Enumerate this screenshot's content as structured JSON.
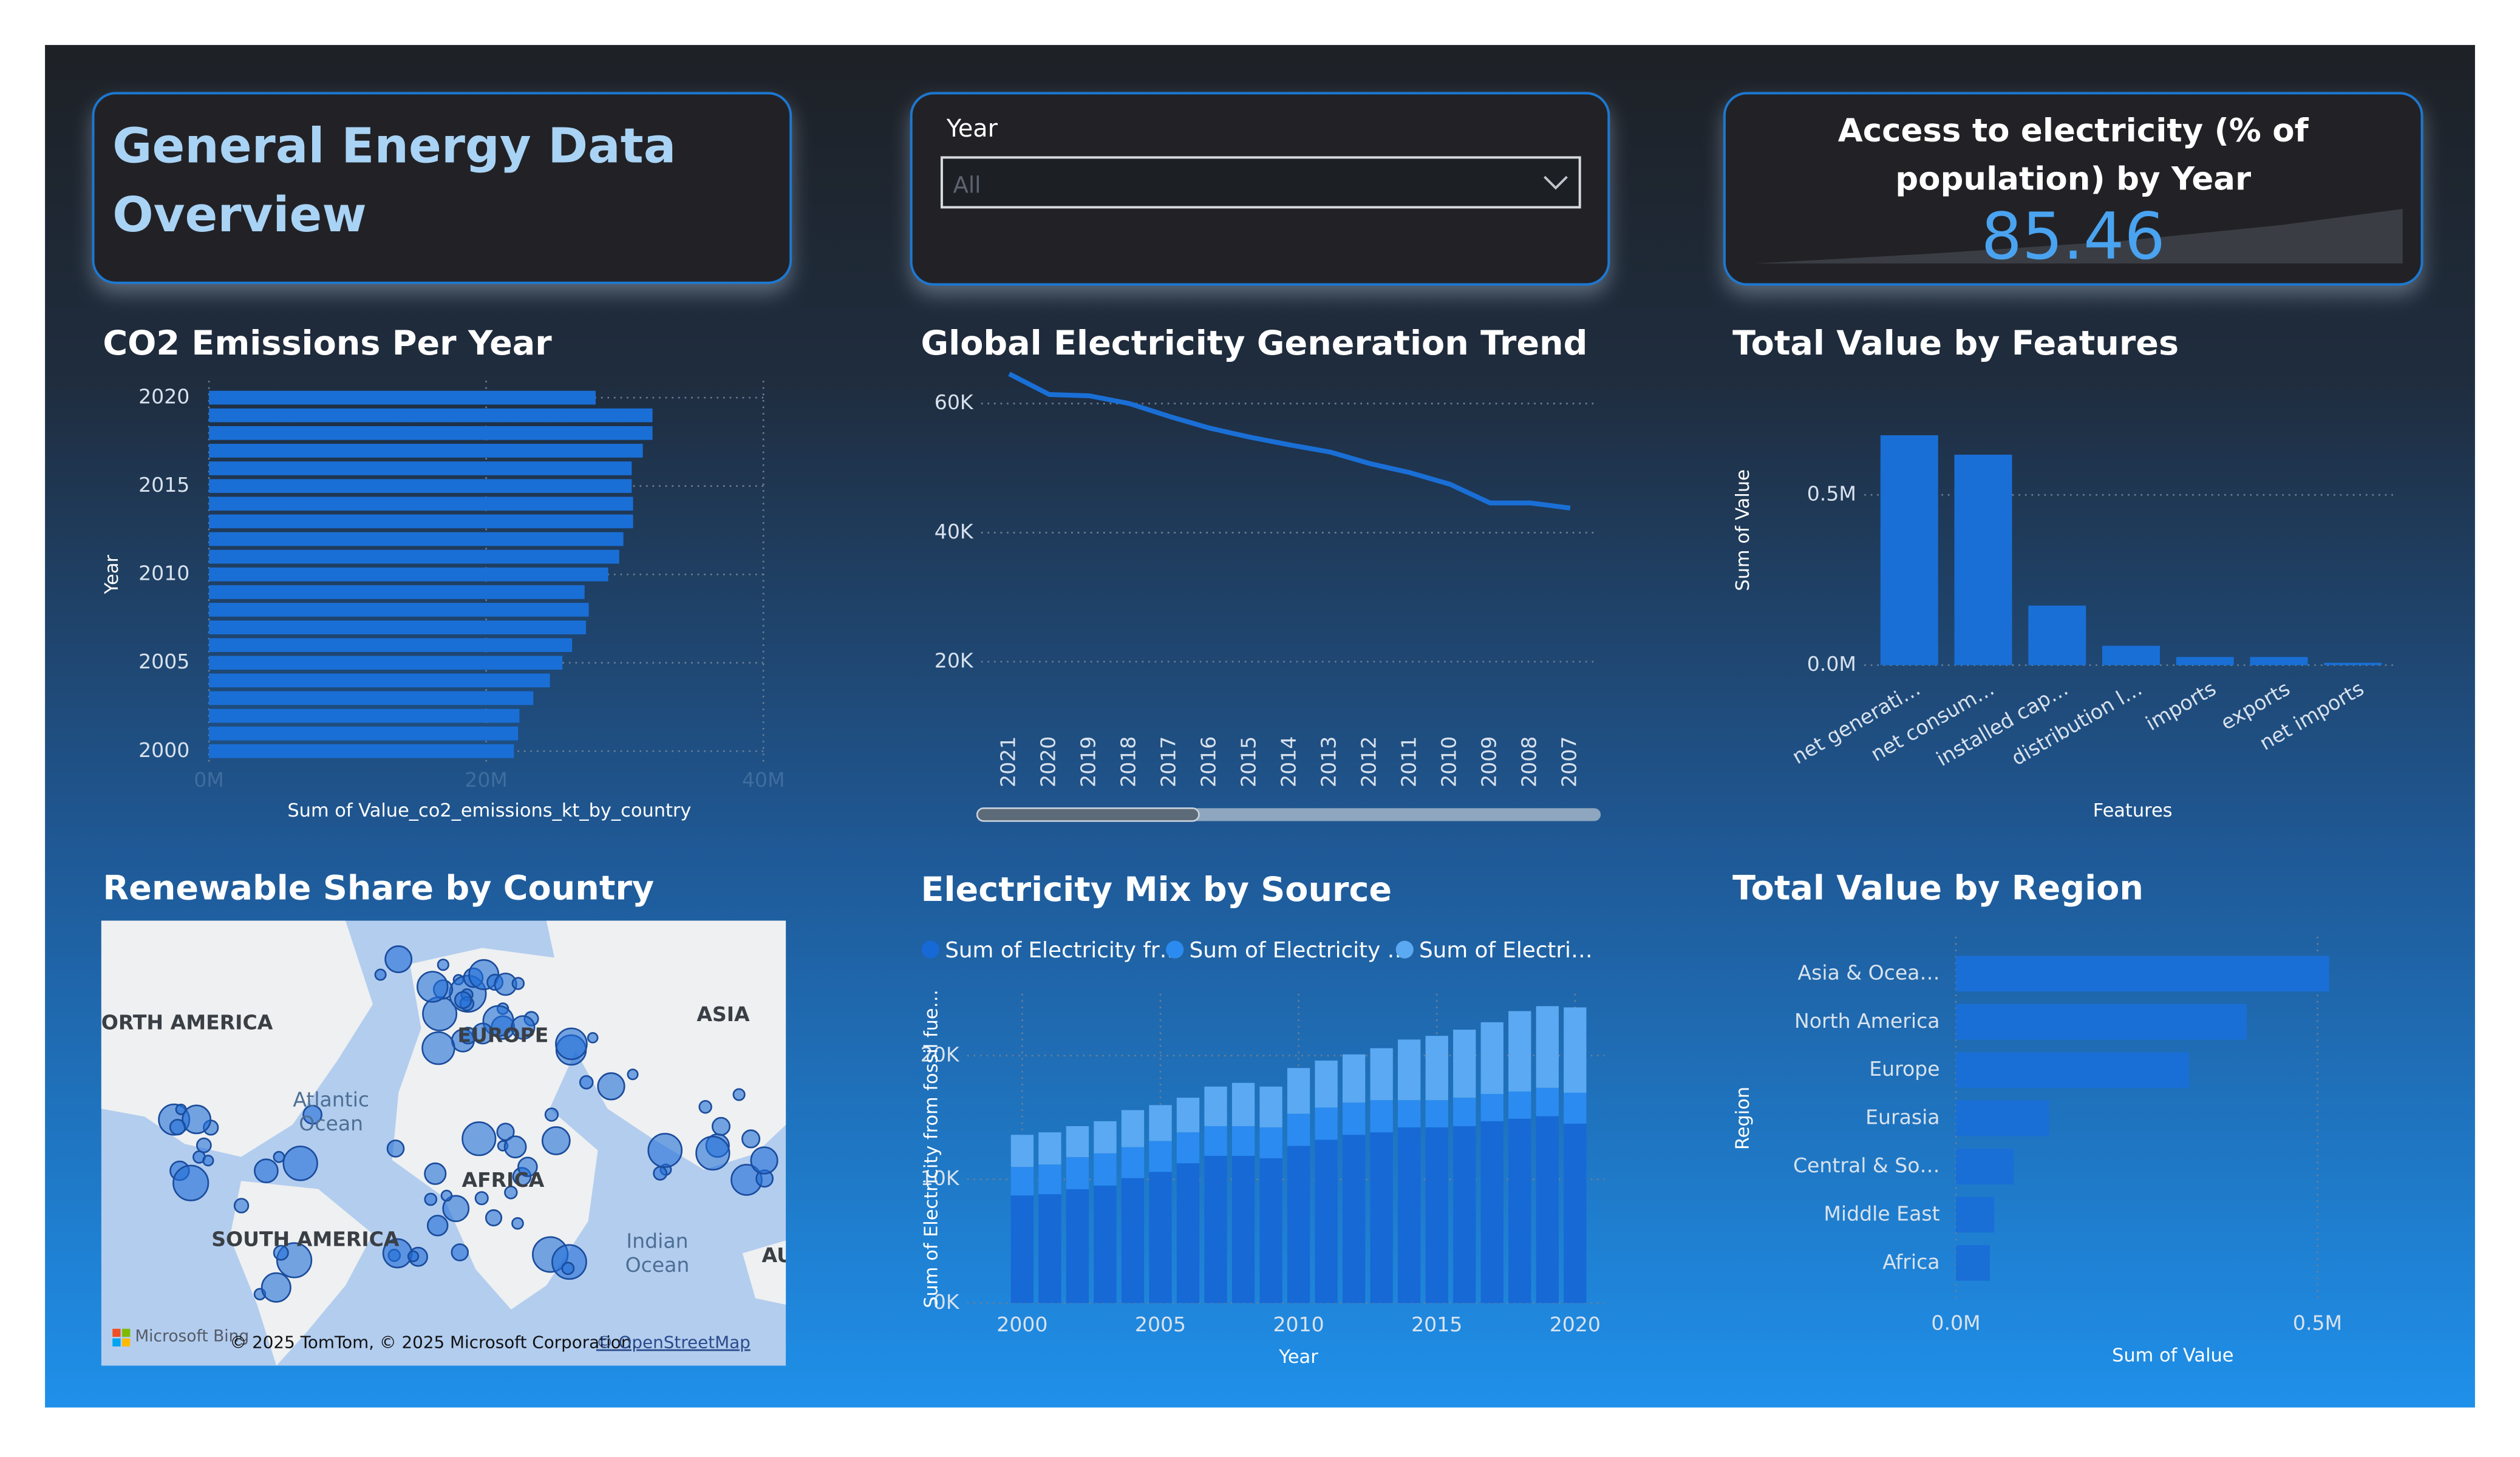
{
  "dashboard": {
    "title": "General Energy Data Overview",
    "slicer": {
      "label": "Year",
      "value": "All"
    },
    "card": {
      "title": "Access to electricity (% of population) by Year",
      "value": 85.46
    }
  },
  "map": {
    "title": "Renewable Share by Country",
    "labels": [
      {
        "lines": [
          "ORTH AMERICA"
        ]
      },
      {
        "lines": [
          "EUROPE"
        ]
      },
      {
        "lines": [
          "ASIA"
        ]
      },
      {
        "lines": [
          "Atlantic",
          "Ocean"
        ]
      },
      {
        "lines": [
          "AFRICA"
        ]
      },
      {
        "lines": [
          "SOUTH AMERICA"
        ]
      },
      {
        "lines": [
          "Indian",
          "Ocean"
        ]
      },
      {
        "lines": [
          "AU"
        ]
      }
    ],
    "attribution": [
      "Microsoft Bing",
      "© 2025 TomTom, © 2025 Microsoft Corporation,",
      "© OpenStreetMap"
    ]
  },
  "chart_data": [
    {
      "type": "bar",
      "orientation": "horizontal",
      "title": "CO2 Emissions Per Year",
      "x_label": "Sum of Value_co2_emissions_kt_by_country",
      "y_label": "Year",
      "y": [
        2000,
        2001,
        2002,
        2003,
        2004,
        2005,
        2006,
        2007,
        2008,
        2009,
        2010,
        2011,
        2012,
        2013,
        2014,
        2015,
        2016,
        2017,
        2018,
        2019,
        2020
      ],
      "values": [
        22000000,
        22300000,
        22400000,
        23400000,
        24600000,
        25500000,
        26200000,
        27200000,
        27400000,
        27100000,
        28800000,
        29600000,
        29900000,
        30600000,
        30600000,
        30500000,
        30500000,
        31300000,
        32000000,
        32000000,
        27900000
      ],
      "color": "#1a6fd6",
      "xlim": [
        0,
        40000000
      ],
      "xticks": [
        {
          "value": 0,
          "label": "0M"
        },
        {
          "value": 20000000,
          "label": "20M"
        },
        {
          "value": 40000000,
          "label": "40M"
        }
      ],
      "ylim": [
        1999.5,
        2020.5
      ],
      "yticks": [
        2000,
        2005,
        2010,
        2015,
        2020
      ],
      "grid": true
    },
    {
      "type": "line",
      "title": "Global Electricity Generation Trend",
      "categories": [
        "2021",
        "2020",
        "2019",
        "2018",
        "2017",
        "2016",
        "2015",
        "2014",
        "2013",
        "2012",
        "2011",
        "2010",
        "2009",
        "2008",
        "2007"
      ],
      "values": [
        64600,
        61400,
        61200,
        60000,
        58000,
        56200,
        54800,
        53600,
        52500,
        50700,
        49300,
        47500,
        44600,
        44600,
        43800
      ],
      "color": "#1a6fd6",
      "ylim": [
        10000,
        70000
      ],
      "yticks": [
        {
          "value": 20000,
          "label": "20K"
        },
        {
          "value": 40000,
          "label": "40K"
        },
        {
          "value": 60000,
          "label": "60K"
        }
      ],
      "grid": true
    },
    {
      "type": "bar",
      "title": "Total Value by Features",
      "x_label": "Features",
      "y_label": "Sum of Value",
      "categories": [
        "net generati…",
        "net consum…",
        "installed cap…",
        "distribution l…",
        "imports",
        "exports",
        "net imports"
      ],
      "values": [
        675000,
        618000,
        175000,
        57000,
        24000,
        24000,
        7000
      ],
      "color": "#1a6fd6",
      "ylim": [
        0,
        750000
      ],
      "yticks": [
        {
          "value": 0,
          "label": "0.0M"
        },
        {
          "value": 500000,
          "label": "0.5M"
        }
      ],
      "grid": true
    },
    {
      "type": "stacked-bar",
      "title": "Electricity Mix by Source",
      "x_label": "Year",
      "y_label": "Sum of Electricity from fossil fue…",
      "x": [
        2000,
        2001,
        2002,
        2003,
        2004,
        2005,
        2006,
        2007,
        2008,
        2009,
        2010,
        2011,
        2012,
        2013,
        2014,
        2015,
        2016,
        2017,
        2018,
        2019,
        2020
      ],
      "series": [
        {
          "name": "Sum of Electricity fr…",
          "color": "#1769d6",
          "values": [
            8700,
            8800,
            9200,
            9500,
            10100,
            10600,
            11300,
            11900,
            11900,
            11700,
            12700,
            13200,
            13600,
            13800,
            14200,
            14200,
            14300,
            14700,
            14900,
            15100,
            14500
          ]
        },
        {
          "name": "Sum of Electricity …",
          "color": "#2b8bf0",
          "values": [
            2300,
            2400,
            2600,
            2600,
            2500,
            2500,
            2500,
            2400,
            2400,
            2500,
            2600,
            2600,
            2600,
            2600,
            2200,
            2200,
            2300,
            2200,
            2200,
            2300,
            2500
          ]
        },
        {
          "name": "Sum of Electri…",
          "color": "#5aa9f2",
          "values": [
            2600,
            2600,
            2500,
            2600,
            3000,
            2900,
            2800,
            3200,
            3500,
            3300,
            3700,
            3800,
            3900,
            4200,
            4900,
            5200,
            5500,
            5800,
            6500,
            6600,
            6900
          ]
        }
      ],
      "xlim": [
        1998.3,
        2020.9
      ],
      "xticks": [
        2000,
        2005,
        2010,
        2015,
        2020
      ],
      "ylim": [
        0,
        25000
      ],
      "yticks": [
        {
          "value": 0,
          "label": "0K"
        },
        {
          "value": 10000,
          "label": "10K"
        },
        {
          "value": 20000,
          "label": "20K"
        }
      ],
      "grid": true,
      "legend": "top"
    },
    {
      "type": "bar",
      "orientation": "horizontal",
      "title": "Total Value by Region",
      "x_label": "Sum of Value",
      "y_label": "Region",
      "categories": [
        "Asia & Ocea…",
        "North America",
        "Europe",
        "Eurasia",
        "Central & So…",
        "Middle East",
        "Africa"
      ],
      "values": [
        516000,
        402000,
        322000,
        129000,
        80000,
        53000,
        47000
      ],
      "color": "#1a6fd6",
      "xlim": [
        0,
        540000
      ],
      "xticks": [
        {
          "value": 0,
          "label": "0.0M"
        },
        {
          "value": 500000,
          "label": "0.5M"
        }
      ],
      "grid": true
    }
  ]
}
